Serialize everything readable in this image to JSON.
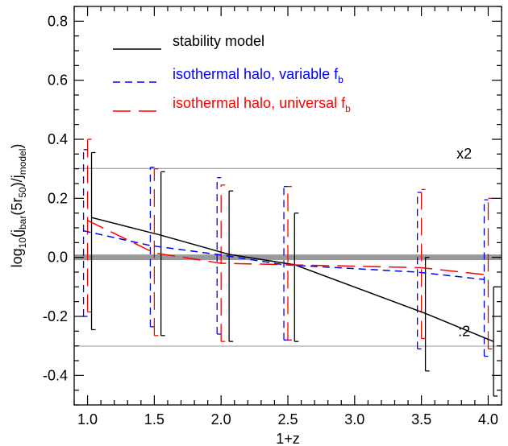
{
  "chart_data": {
    "type": "line",
    "xlabel": "1+z",
    "ylabel": "log10(jbar(5r50)/jmodel)",
    "ylabel_parts": {
      "prefix": "log",
      "log_base": "10",
      "open": "(j",
      "numerator_sub": "bar",
      "middle": "(5r",
      "r_sub": "50",
      "close_inner": ")/j",
      "denominator_sub": "model",
      "close": ")"
    },
    "xlim": [
      0.9,
      4.1
    ],
    "ylim": [
      -0.5,
      0.85
    ],
    "x_ticks": [
      {
        "value": 1.0,
        "label": "1.0"
      },
      {
        "value": 1.5,
        "label": "1.5"
      },
      {
        "value": 2.0,
        "label": "2.0"
      },
      {
        "value": 2.5,
        "label": "2.5"
      },
      {
        "value": 3.0,
        "label": "3.0"
      },
      {
        "value": 3.5,
        "label": "3.5"
      },
      {
        "value": 4.0,
        "label": "4.0"
      }
    ],
    "x_minor_step": 0.1,
    "y_ticks": [
      {
        "value": 0.8,
        "label": "0.8"
      },
      {
        "value": 0.6,
        "label": "0.6"
      },
      {
        "value": 0.4,
        "label": "0.4"
      },
      {
        "value": 0.2,
        "label": "0.2"
      },
      {
        "value": 0.0,
        "label": "0.0"
      },
      {
        "value": -0.2,
        "label": "-0.2"
      },
      {
        "value": -0.4,
        "label": "-0.4"
      }
    ],
    "y_minor_step": 0.05,
    "reference_lines": [
      {
        "y": 0.0,
        "color": "#999999",
        "kind": "thick"
      },
      {
        "y": 0.301,
        "color": "#aaaaaa",
        "kind": "thin"
      },
      {
        "y": -0.301,
        "color": "#aaaaaa",
        "kind": "thin"
      }
    ],
    "annotations": [
      {
        "text": "x2",
        "x": 3.82,
        "y": 0.335
      },
      {
        "text": ":2",
        "x": 3.82,
        "y": -0.267
      }
    ],
    "series": [
      {
        "name": "stability model",
        "name_main": "stability model",
        "name_sub": "",
        "color": "#000000",
        "dash": "solid",
        "x": [
          1.03,
          1.55,
          2.06,
          2.55,
          3.53,
          4.04
        ],
        "y": [
          0.135,
          0.075,
          0.01,
          -0.025,
          -0.19,
          -0.285
        ],
        "err_low": [
          -0.245,
          -0.265,
          -0.285,
          -0.285,
          -0.385,
          -0.47
        ],
        "err_high": [
          0.355,
          0.29,
          0.225,
          0.15,
          0.0,
          -0.1
        ]
      },
      {
        "name": "isothermal halo, variable fb",
        "name_main": "isothermal halo, variable f",
        "name_sub": "b",
        "color": "#0000ff",
        "dash": "short",
        "x": [
          0.97,
          1.47,
          1.97,
          2.47,
          3.47,
          3.97
        ],
        "y": [
          0.09,
          0.04,
          0.01,
          -0.025,
          -0.05,
          -0.075
        ],
        "err_low": [
          -0.2,
          -0.235,
          -0.26,
          -0.28,
          -0.31,
          -0.335
        ],
        "err_high": [
          0.365,
          0.305,
          0.27,
          0.24,
          0.22,
          0.195
        ]
      },
      {
        "name": "isothermal halo, universal fb",
        "name_main": "isothermal halo, universal f",
        "name_sub": "b",
        "color": "#ff0000",
        "dash": "long",
        "x": [
          1.0,
          1.5,
          2.0,
          2.5,
          3.5,
          4.0
        ],
        "y": [
          0.125,
          0.015,
          -0.02,
          -0.025,
          -0.035,
          -0.06
        ],
        "err_low": [
          -0.185,
          -0.265,
          -0.285,
          -0.28,
          -0.275,
          -0.31
        ],
        "err_high": [
          0.4,
          0.3,
          0.245,
          0.24,
          0.23,
          0.2
        ]
      }
    ],
    "legend": {
      "placement": "top-left"
    },
    "grid": false
  }
}
